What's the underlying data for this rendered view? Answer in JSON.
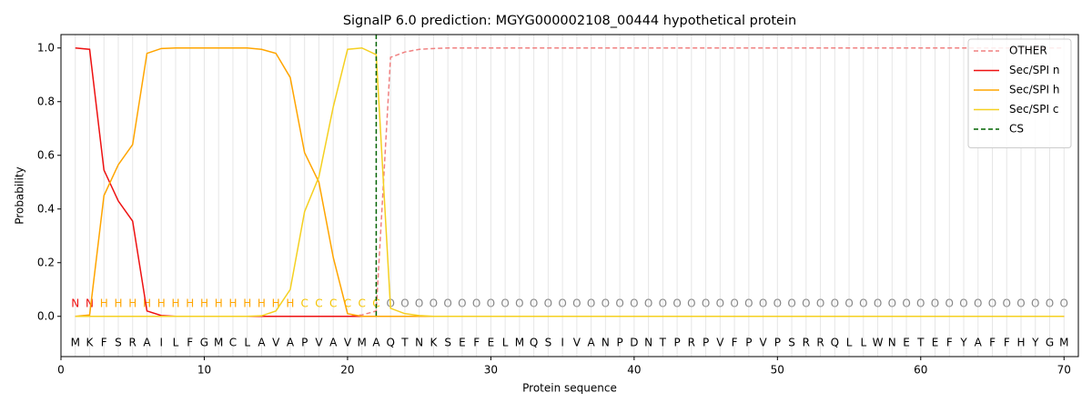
{
  "chart_data": {
    "type": "line",
    "title": "SignalP 6.0 prediction: MGYG000002108_00444 hypothetical protein",
    "x_label": "Protein sequence",
    "y_label": "Probability",
    "xlim": [
      0,
      71
    ],
    "ylim": [
      -0.15,
      1.05
    ],
    "xticks": [
      0,
      10,
      20,
      30,
      40,
      50,
      60,
      70
    ],
    "yticks": [
      {
        "value": 0,
        "label": "0.0"
      },
      {
        "value": 0.2,
        "label": "0.2"
      },
      {
        "value": 0.4,
        "label": "0.4"
      },
      {
        "value": 0.6,
        "label": "0.6"
      },
      {
        "value": 0.8,
        "label": "0.8"
      },
      {
        "value": 1,
        "label": "1.0"
      }
    ],
    "x": [
      1,
      2,
      3,
      4,
      5,
      6,
      7,
      8,
      9,
      10,
      11,
      12,
      13,
      14,
      15,
      16,
      17,
      18,
      19,
      20,
      21,
      22,
      23,
      24,
      25,
      26,
      27,
      28,
      29,
      30,
      31,
      32,
      33,
      34,
      35,
      36,
      37,
      38,
      39,
      40,
      41,
      42,
      43,
      44,
      45,
      46,
      47,
      48,
      49,
      50,
      51,
      52,
      53,
      54,
      55,
      56,
      57,
      58,
      59,
      60,
      61,
      62,
      63,
      64,
      65,
      66,
      67,
      68,
      69,
      70
    ],
    "sequence": [
      "M",
      "K",
      "F",
      "S",
      "R",
      "A",
      "I",
      "L",
      "F",
      "G",
      "M",
      "C",
      "L",
      "A",
      "V",
      "A",
      "P",
      "V",
      "A",
      "V",
      "M",
      "A",
      "Q",
      "T",
      "N",
      "K",
      "S",
      "E",
      "F",
      "E",
      "L",
      "M",
      "Q",
      "S",
      "I",
      "V",
      "A",
      "N",
      "P",
      "D",
      "N",
      "T",
      "P",
      "R",
      "P",
      "V",
      "F",
      "P",
      "V",
      "P",
      "S",
      "R",
      "R",
      "Q",
      "L",
      "L",
      "W",
      "N",
      "E",
      "T",
      "E",
      "F",
      "Y",
      "A",
      "F",
      "F",
      "H",
      "Y",
      "G",
      "M"
    ],
    "labels": [
      "N",
      "N",
      "H",
      "H",
      "H",
      "H",
      "H",
      "H",
      "H",
      "H",
      "H",
      "H",
      "H",
      "H",
      "H",
      "H",
      "C",
      "C",
      "C",
      "C",
      "C",
      "C",
      "O",
      "O",
      "O",
      "O",
      "O",
      "O",
      "O",
      "O",
      "O",
      "O",
      "O",
      "O",
      "O",
      "O",
      "O",
      "O",
      "O",
      "O",
      "O",
      "O",
      "O",
      "O",
      "O",
      "O",
      "O",
      "O",
      "O",
      "O",
      "O",
      "O",
      "O",
      "O",
      "O",
      "O",
      "O",
      "O",
      "O",
      "O",
      "O",
      "O",
      "O",
      "O",
      "O",
      "O",
      "O",
      "O",
      "O",
      "O"
    ],
    "label_colors": {
      "N": "#ee1111",
      "H": "#ffa500",
      "C": "#f5c400",
      "O": "#888888"
    },
    "series": [
      {
        "name": "OTHER",
        "color": "#f08080",
        "dashed": true,
        "values": [
          0,
          0,
          0,
          0,
          0,
          0,
          0,
          0,
          0,
          0,
          0,
          0,
          0,
          0,
          0,
          0,
          0,
          0,
          0,
          0,
          0.005,
          0.02,
          0.965,
          0.985,
          0.995,
          0.998,
          1,
          1,
          1,
          1,
          1,
          1,
          1,
          1,
          1,
          1,
          1,
          1,
          1,
          1,
          1,
          1,
          1,
          1,
          1,
          1,
          1,
          1,
          1,
          1,
          1,
          1,
          1,
          1,
          1,
          1,
          1,
          1,
          1,
          1,
          1,
          1,
          1,
          1,
          1,
          1,
          1,
          1,
          1,
          1
        ]
      },
      {
        "name": "Sec/SPI n",
        "color": "#ee1111",
        "values": [
          1.0,
          0.995,
          0.545,
          0.43,
          0.355,
          0.02,
          0.003,
          0,
          0,
          0,
          0,
          0,
          0,
          0,
          0,
          0,
          0,
          0,
          0,
          0,
          0,
          0,
          0,
          0,
          0,
          0,
          0,
          0,
          0,
          0,
          0,
          0,
          0,
          0,
          0,
          0,
          0,
          0,
          0,
          0,
          0,
          0,
          0,
          0,
          0,
          0,
          0,
          0,
          0,
          0,
          0,
          0,
          0,
          0,
          0,
          0,
          0,
          0,
          0,
          0,
          0,
          0,
          0,
          0,
          0,
          0,
          0,
          0,
          0,
          0
        ]
      },
      {
        "name": "Sec/SPI h",
        "color": "#ffa500",
        "values": [
          0,
          0.005,
          0.45,
          0.565,
          0.64,
          0.98,
          0.998,
          1,
          1,
          1,
          1,
          1,
          1,
          0.995,
          0.98,
          0.89,
          0.61,
          0.5,
          0.22,
          0.01,
          0,
          0,
          0,
          0,
          0,
          0,
          0,
          0,
          0,
          0,
          0,
          0,
          0,
          0,
          0,
          0,
          0,
          0,
          0,
          0,
          0,
          0,
          0,
          0,
          0,
          0,
          0,
          0,
          0,
          0,
          0,
          0,
          0,
          0,
          0,
          0,
          0,
          0,
          0,
          0,
          0,
          0,
          0,
          0,
          0,
          0,
          0,
          0,
          0,
          0
        ]
      },
      {
        "name": "Sec/SPI c",
        "color": "#f5d020",
        "values": [
          0,
          0,
          0,
          0,
          0,
          0,
          0,
          0,
          0,
          0,
          0,
          0,
          0,
          0.002,
          0.02,
          0.1,
          0.39,
          0.52,
          0.78,
          0.995,
          1,
          0.975,
          0.03,
          0.01,
          0.003,
          0,
          0,
          0,
          0,
          0,
          0,
          0,
          0,
          0,
          0,
          0,
          0,
          0,
          0,
          0,
          0,
          0,
          0,
          0,
          0,
          0,
          0,
          0,
          0,
          0,
          0,
          0,
          0,
          0,
          0,
          0,
          0,
          0,
          0,
          0,
          0,
          0,
          0,
          0,
          0,
          0,
          0,
          0,
          0,
          0
        ]
      }
    ],
    "cs": {
      "name": "CS",
      "color": "#006400",
      "x": 22
    },
    "legend": "upper right"
  }
}
